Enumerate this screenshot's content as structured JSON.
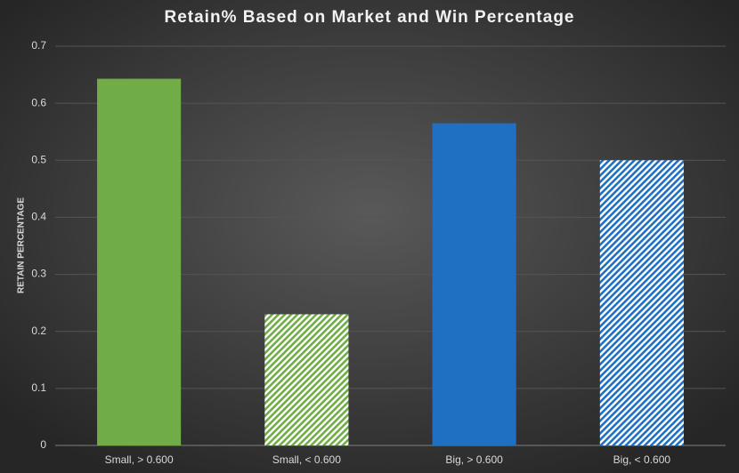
{
  "chart_data": {
    "type": "bar",
    "title": "Retain% Based on Market and Win Percentage",
    "y_label": "RETAIN PERCENTAGE",
    "categories": [
      "Small, > 0.600",
      "Small, < 0.600",
      "Big, > 0.600",
      "Big, < 0.600"
    ],
    "values": [
      0.643,
      0.23,
      0.565,
      0.5
    ],
    "colors": [
      "#70ad47",
      "#70ad47",
      "#1f6fc2",
      "#1f6fc2"
    ],
    "hatched": [
      false,
      true,
      false,
      true
    ],
    "ylim": [
      0,
      0.7
    ],
    "yticks": [
      0,
      0.1,
      0.2,
      0.3,
      0.4,
      0.5,
      0.6,
      0.7
    ],
    "grid": true
  }
}
